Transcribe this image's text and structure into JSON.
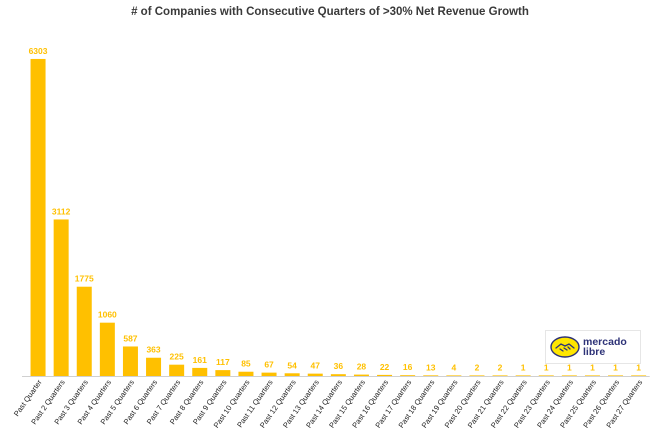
{
  "chart_data": {
    "type": "bar",
    "title": "# of Companies with Consecutive Quarters of >30% Net Revenue Growth",
    "xlabel": "",
    "ylabel": "",
    "ylim": [
      0,
      6600
    ],
    "grid": false,
    "bar_color": "#FFC000",
    "label_color": "#FFC000",
    "categories": [
      "Past Quarter",
      "Past 2 Quarters",
      "Past 3 Quarters",
      "Past 4 Quarters",
      "Past 5 Quarters",
      "Past 6 Quarters",
      "Past 7 Quarters",
      "Past 8 Quarters",
      "Past 9 Quarters",
      "Past 10 Quarters",
      "Past 11 Quarters",
      "Past 12 Quarters",
      "Past 13 Quarters",
      "Past 14 Quarters",
      "Past 15 Quarters",
      "Past 16 Quarters",
      "Past 17 Quarters",
      "Past 18 Quarters",
      "Past 19 Quarters",
      "Past 20 Quarters",
      "Past 21 Quarters",
      "Past 22 Quarters",
      "Past 23 Quarters",
      "Past 24 Quarters",
      "Past 25 Quarters",
      "Past 26 Quarters",
      "Past 27 Quarters"
    ],
    "values": [
      6303,
      3112,
      1775,
      1060,
      587,
      363,
      225,
      161,
      117,
      85,
      67,
      54,
      47,
      36,
      28,
      22,
      16,
      13,
      4,
      2,
      2,
      1,
      1,
      1,
      1,
      1,
      1
    ]
  },
  "logo": {
    "line1": "mercado",
    "line2": "libre"
  }
}
